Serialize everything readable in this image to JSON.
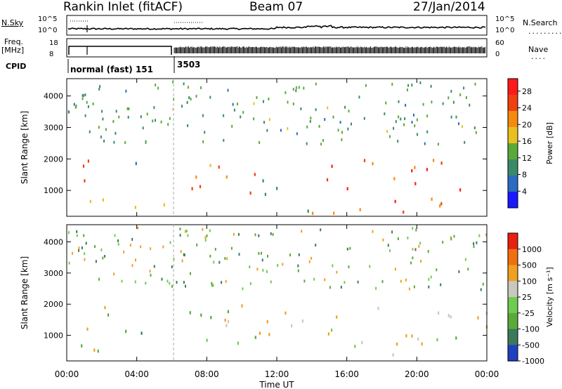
{
  "header": {
    "station": "Rankin Inlet (fitACF)",
    "beam": "Beam 07",
    "date": "27/Jan/2014"
  },
  "panels": {
    "nsky_label": "N.Sky",
    "nsearch_label": "N.Search",
    "noise_ticks": [
      "10^5",
      "10^0"
    ],
    "freq_label": "Freq.",
    "freq_unit": "[MHz]",
    "freq_ticks": [
      "18",
      "8"
    ],
    "nave_label": "Nave",
    "nave_ticks": [
      "60",
      "0"
    ],
    "cpid_label": "CPID",
    "cpid_segments": [
      "normal (fast) 151",
      "3503"
    ]
  },
  "chart_data": [
    {
      "type": "heatmap",
      "title": "",
      "xlabel": "Time UT",
      "ylabel": "Slant Range [km]",
      "x_ticks": [
        "00:00",
        "04:00",
        "08:00",
        "12:00",
        "16:00",
        "20:00",
        "00:00"
      ],
      "y_ticks": [
        1000,
        2000,
        3000,
        4000
      ],
      "x_range_hours": [
        0,
        24
      ],
      "y_range_km": [
        180,
        4550
      ],
      "colorbar": {
        "label": "Power [dB]",
        "ticks": [
          4,
          8,
          12,
          16,
          20,
          24,
          28
        ],
        "range": [
          0,
          31
        ],
        "colors": [
          "#1a1aff",
          "#2a6cc0",
          "#3a8a6a",
          "#5aaa3a",
          "#e8c020",
          "#f58a10",
          "#f04010",
          "#ff1a1a"
        ]
      },
      "regions": [
        {
          "t0": 0.1,
          "t1": 1.3,
          "r0": 300,
          "r1": 2300,
          "value": 20
        },
        {
          "t0": 1.3,
          "t1": 2.8,
          "r0": 700,
          "r1": 2000,
          "value": 16
        },
        {
          "t0": 3.7,
          "t1": 4.5,
          "r0": 300,
          "r1": 2200,
          "value": 12
        },
        {
          "t0": 5.0,
          "t1": 6.0,
          "r0": 200,
          "r1": 1200,
          "value": 24
        },
        {
          "t0": 6.3,
          "t1": 11.0,
          "r0": 700,
          "r1": 2300,
          "value": 26
        },
        {
          "t0": 11.0,
          "t1": 14.0,
          "r0": 300,
          "r1": 1500,
          "value": 14
        },
        {
          "t0": 14.0,
          "t1": 24.0,
          "r0": 300,
          "r1": 2200,
          "value": 28
        }
      ]
    },
    {
      "type": "heatmap",
      "title": "",
      "xlabel": "Time UT",
      "ylabel": "Slant Range [km]",
      "x_ticks": [
        "00:00",
        "04:00",
        "08:00",
        "12:00",
        "16:00",
        "20:00",
        "00:00"
      ],
      "y_ticks": [
        1000,
        2000,
        3000,
        4000
      ],
      "x_range_hours": [
        0,
        24
      ],
      "y_range_km": [
        180,
        4550
      ],
      "colorbar": {
        "label": "Velocity [m s⁻¹]",
        "ticks": [
          1000,
          500,
          100,
          25,
          -25,
          -100,
          -500,
          -1000
        ],
        "colors": [
          "#2040c0",
          "#3a7a5a",
          "#5aaa3a",
          "#70cc50",
          "#c8c8c0",
          "#f0a020",
          "#f07010",
          "#e82010"
        ]
      },
      "regions": [
        {
          "t0": 0.1,
          "t1": 2.5,
          "r0": 1000,
          "r1": 2300,
          "value": 25
        },
        {
          "t0": 0.1,
          "t1": 4.5,
          "r0": 300,
          "r1": 1200,
          "value": 100
        },
        {
          "t0": 3.7,
          "t1": 4.5,
          "r0": 1000,
          "r1": 2100,
          "value": 500
        },
        {
          "t0": 6.3,
          "t1": 11.0,
          "r0": 700,
          "r1": 2300,
          "value": 100
        },
        {
          "t0": 9.0,
          "t1": 14.0,
          "r0": 300,
          "r1": 2000,
          "value": -100
        },
        {
          "t0": 14.0,
          "t1": 24.0,
          "r0": 300,
          "r1": 2100,
          "value": -100
        }
      ]
    }
  ]
}
